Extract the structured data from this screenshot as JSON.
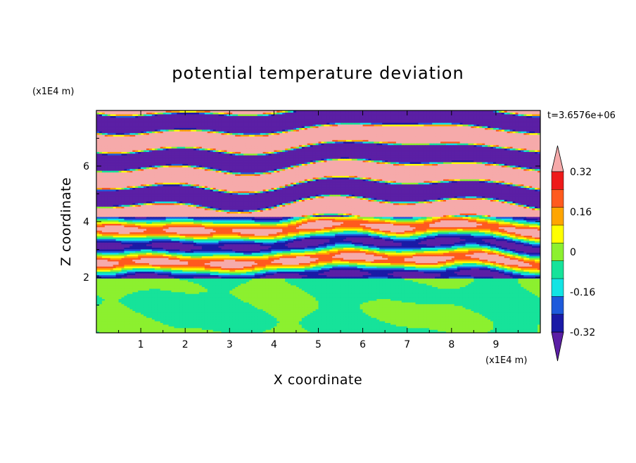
{
  "chart_data": {
    "type": "heatmap",
    "title": "potential temperature deviation",
    "xlabel": "X coordinate",
    "ylabel": "Z coordinate",
    "x_unit": "(x1E4 m)",
    "y_unit": "(x1E4 m)",
    "time_label": "t=3.6576e+06",
    "xlim": [
      0,
      10
    ],
    "ylim": [
      0,
      8
    ],
    "xticks": [
      "1",
      "2",
      "3",
      "4",
      "5",
      "6",
      "7",
      "8",
      "9"
    ],
    "yticks": [
      "2",
      "4",
      "6"
    ],
    "colorbar": {
      "tick_labels": [
        "0.32",
        "0.16",
        "0",
        "-0.16",
        "-0.32"
      ],
      "levels": [
        -0.4,
        -0.32,
        -0.24,
        -0.16,
        -0.08,
        0,
        0.08,
        0.16,
        0.24,
        0.32,
        0.4
      ],
      "colors": [
        "#5b1fa5",
        "#1a1aa6",
        "#1e5adb",
        "#12e4e4",
        "#16e39a",
        "#8cf02f",
        "#ffff00",
        "#ffa500",
        "#ff5a1e",
        "#ee1a1a",
        "#f6aaaa"
      ]
    },
    "regions": {
      "lower_layer": {
        "z_range": [
          0,
          2
        ],
        "values": [
          -0.04,
          0.04
        ]
      },
      "mixed_layer": {
        "z_range": [
          2,
          4.2
        ],
        "values": [
          -0.36,
          0.36
        ]
      },
      "upper_layer": {
        "z_range": [
          4.2,
          8
        ],
        "values": [
          -0.44,
          0.44
        ]
      }
    }
  }
}
